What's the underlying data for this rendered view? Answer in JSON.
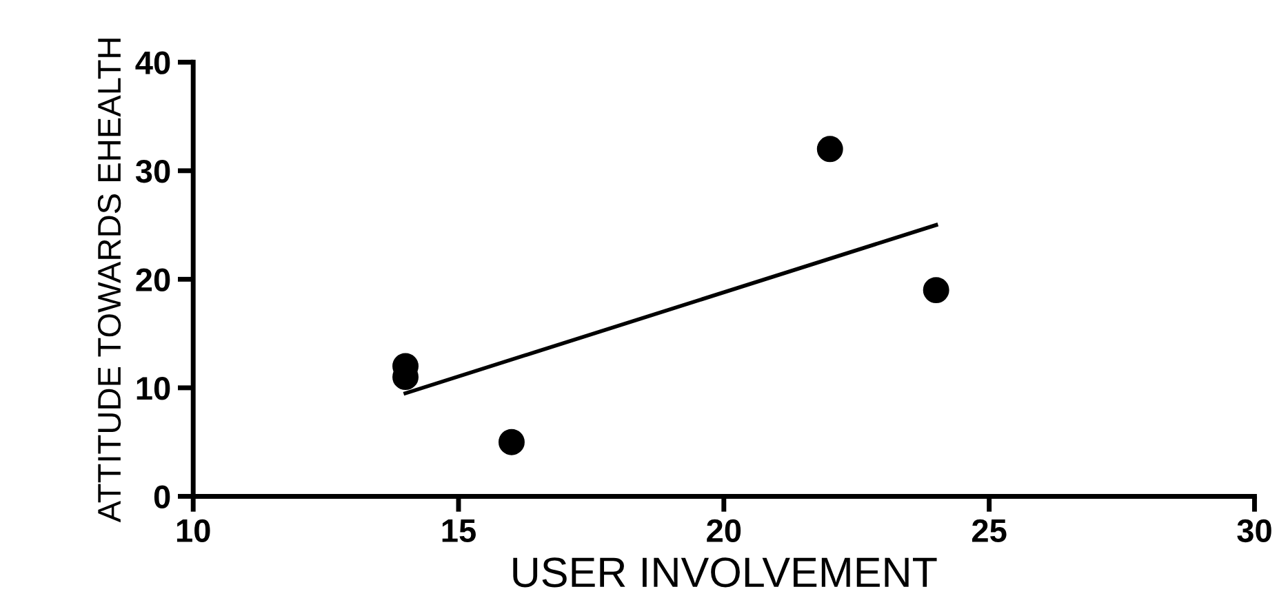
{
  "chart_data": {
    "type": "scatter",
    "xlabel": "USER INVOLVEMENT",
    "ylabel": "ATTITUDE TOWARDS EHEALTH",
    "xlim": [
      10,
      30
    ],
    "xticks": [
      10,
      15,
      20,
      25,
      30
    ],
    "ylim": [
      0,
      40
    ],
    "yticks": [
      0,
      10,
      20,
      30,
      40
    ],
    "grid": false,
    "legend": false,
    "series": [
      {
        "color": "#000000",
        "marker": "circle",
        "x": [
          14,
          14,
          16,
          22,
          24
        ],
        "values": [
          12,
          11,
          5,
          32,
          19
        ]
      },
      {
        "type": "line",
        "color": "#000000",
        "marker": "none",
        "line_style": "solid",
        "x": [
          14,
          24
        ],
        "values": [
          9.5,
          25
        ]
      }
    ]
  }
}
